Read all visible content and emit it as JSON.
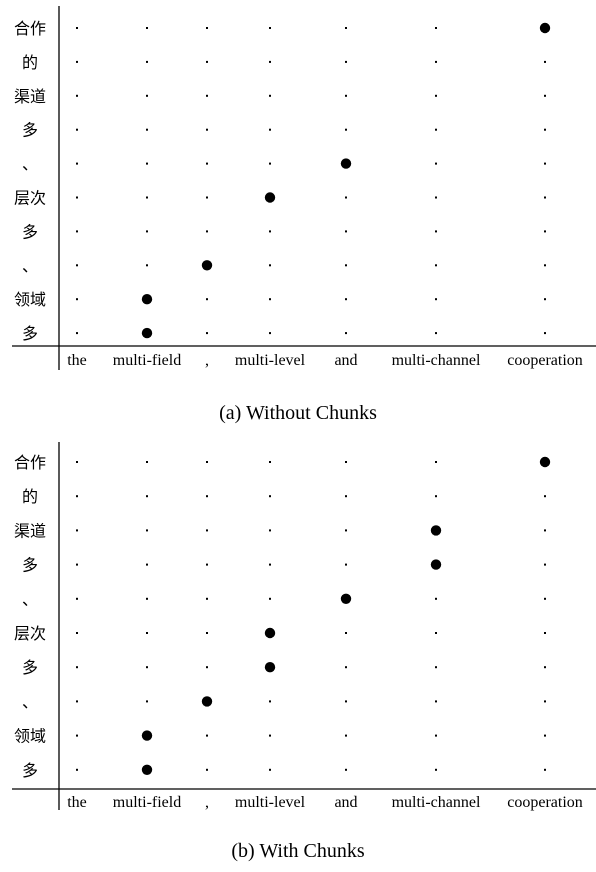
{
  "panels": [
    {
      "caption": "(a) Without Chunks",
      "rows": [
        "合作",
        "的",
        "渠道",
        "多",
        "、",
        "层次",
        "多",
        "、",
        "领域",
        "多"
      ],
      "columns": [
        "the",
        "multi-field",
        ",",
        "multi-level",
        "and",
        "multi-channel",
        "cooperation"
      ],
      "alignments": [
        [
          0,
          6
        ],
        [
          4,
          4
        ],
        [
          5,
          3
        ],
        [
          7,
          2
        ],
        [
          8,
          1
        ],
        [
          9,
          1
        ]
      ]
    },
    {
      "caption": "(b) With Chunks",
      "rows": [
        "合作",
        "的",
        "渠道",
        "多",
        "、",
        "层次",
        "多",
        "、",
        "领域",
        "多"
      ],
      "columns": [
        "the",
        "multi-field",
        ",",
        "multi-level",
        "and",
        "multi-channel",
        "cooperation"
      ],
      "alignments": [
        [
          0,
          6
        ],
        [
          2,
          5
        ],
        [
          3,
          5
        ],
        [
          4,
          4
        ],
        [
          5,
          3
        ],
        [
          6,
          3
        ],
        [
          7,
          2
        ],
        [
          8,
          1
        ],
        [
          9,
          1
        ]
      ]
    }
  ]
}
